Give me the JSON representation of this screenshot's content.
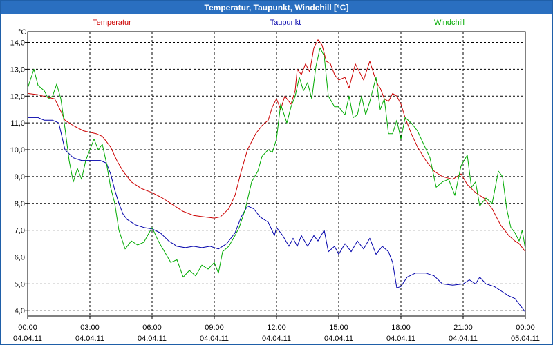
{
  "chart_data": {
    "type": "line",
    "title": "Temperatur, Taupunkt, Windchill [°C]",
    "ylabel": "°C",
    "ylim": [
      3.8,
      14.4
    ],
    "yticks": [
      "14,0",
      "13,0",
      "12,0",
      "11,0",
      "10,0",
      "9,0",
      "8,0",
      "7,0",
      "6,0",
      "5,0",
      "4,0"
    ],
    "ytick_values": [
      14,
      13,
      12,
      11,
      10,
      9,
      8,
      7,
      6,
      5,
      4
    ],
    "xlim": [
      0,
      24
    ],
    "xticks": [
      {
        "time": "00:00",
        "date": "04.04.11"
      },
      {
        "time": "03:00",
        "date": "04.04.11"
      },
      {
        "time": "06:00",
        "date": "04.04.11"
      },
      {
        "time": "09:00",
        "date": "04.04.11"
      },
      {
        "time": "12:00",
        "date": "04.04.11"
      },
      {
        "time": "15:00",
        "date": "04.04.11"
      },
      {
        "time": "18:00",
        "date": "04.04.11"
      },
      {
        "time": "21:00",
        "date": "04.04.11"
      },
      {
        "time": "00:00",
        "date": "05.04.11"
      }
    ],
    "xtick_values": [
      0,
      3,
      6,
      9,
      12,
      15,
      18,
      21,
      24
    ],
    "grid": true,
    "series": [
      {
        "name": "Temperatur",
        "color": "#cc0000",
        "points": [
          [
            0,
            12.1
          ],
          [
            0.5,
            12.05
          ],
          [
            1,
            11.95
          ],
          [
            1.3,
            11.9
          ],
          [
            1.5,
            11.6
          ],
          [
            1.8,
            11.1
          ],
          [
            2.2,
            10.9
          ],
          [
            2.7,
            10.7
          ],
          [
            3.3,
            10.6
          ],
          [
            3.6,
            10.5
          ],
          [
            4.0,
            10.1
          ],
          [
            4.3,
            9.6
          ],
          [
            4.6,
            9.2
          ],
          [
            5.0,
            8.8
          ],
          [
            5.5,
            8.55
          ],
          [
            6.0,
            8.4
          ],
          [
            6.5,
            8.2
          ],
          [
            7.0,
            7.95
          ],
          [
            7.5,
            7.7
          ],
          [
            8.0,
            7.55
          ],
          [
            8.5,
            7.5
          ],
          [
            9.0,
            7.45
          ],
          [
            9.3,
            7.5
          ],
          [
            9.7,
            7.8
          ],
          [
            10.0,
            8.3
          ],
          [
            10.3,
            9.2
          ],
          [
            10.6,
            10.0
          ],
          [
            11.0,
            10.6
          ],
          [
            11.3,
            10.9
          ],
          [
            11.6,
            11.1
          ],
          [
            11.8,
            11.6
          ],
          [
            12.0,
            11.9
          ],
          [
            12.2,
            11.5
          ],
          [
            12.4,
            12.0
          ],
          [
            12.7,
            11.7
          ],
          [
            12.9,
            12.2
          ],
          [
            13.0,
            13.0
          ],
          [
            13.2,
            12.8
          ],
          [
            13.4,
            13.2
          ],
          [
            13.6,
            12.9
          ],
          [
            13.8,
            13.8
          ],
          [
            14.0,
            14.1
          ],
          [
            14.2,
            13.9
          ],
          [
            14.4,
            13.3
          ],
          [
            14.6,
            13.2
          ],
          [
            14.8,
            12.8
          ],
          [
            15.0,
            12.6
          ],
          [
            15.3,
            12.7
          ],
          [
            15.5,
            12.3
          ],
          [
            15.8,
            13.2
          ],
          [
            16.0,
            12.9
          ],
          [
            16.2,
            12.6
          ],
          [
            16.5,
            13.3
          ],
          [
            16.7,
            12.8
          ],
          [
            16.9,
            12.4
          ],
          [
            17.0,
            12.3
          ],
          [
            17.2,
            11.9
          ],
          [
            17.4,
            11.8
          ],
          [
            17.6,
            12.1
          ],
          [
            17.8,
            12.0
          ],
          [
            18.0,
            11.7
          ],
          [
            18.2,
            11.2
          ],
          [
            18.5,
            10.6
          ],
          [
            18.8,
            10.1
          ],
          [
            19.2,
            9.6
          ],
          [
            19.6,
            9.2
          ],
          [
            20.0,
            9.0
          ],
          [
            20.5,
            8.9
          ],
          [
            20.9,
            9.1
          ],
          [
            21.2,
            8.7
          ],
          [
            21.6,
            8.4
          ],
          [
            22.0,
            8.2
          ],
          [
            22.4,
            7.8
          ],
          [
            22.8,
            7.2
          ],
          [
            23.2,
            6.8
          ],
          [
            23.5,
            6.6
          ],
          [
            23.7,
            6.5
          ],
          [
            24.0,
            6.2
          ]
        ]
      },
      {
        "name": "Taupunkt",
        "color": "#0000aa",
        "points": [
          [
            0,
            11.2
          ],
          [
            0.5,
            11.2
          ],
          [
            0.8,
            11.1
          ],
          [
            1.2,
            11.1
          ],
          [
            1.5,
            11.0
          ],
          [
            1.8,
            10.0
          ],
          [
            2.2,
            9.7
          ],
          [
            2.6,
            9.6
          ],
          [
            3.0,
            9.6
          ],
          [
            3.5,
            9.6
          ],
          [
            3.8,
            9.5
          ],
          [
            4.0,
            9.1
          ],
          [
            4.2,
            8.5
          ],
          [
            4.4,
            8.0
          ],
          [
            4.6,
            7.6
          ],
          [
            4.8,
            7.4
          ],
          [
            5.2,
            7.2
          ],
          [
            5.6,
            7.1
          ],
          [
            6.0,
            7.05
          ],
          [
            6.4,
            6.9
          ],
          [
            6.8,
            6.6
          ],
          [
            7.2,
            6.4
          ],
          [
            7.6,
            6.35
          ],
          [
            8.0,
            6.4
          ],
          [
            8.4,
            6.35
          ],
          [
            8.8,
            6.4
          ],
          [
            9.2,
            6.3
          ],
          [
            9.6,
            6.5
          ],
          [
            10.0,
            6.9
          ],
          [
            10.3,
            7.5
          ],
          [
            10.6,
            7.9
          ],
          [
            10.9,
            7.8
          ],
          [
            11.2,
            7.5
          ],
          [
            11.6,
            7.3
          ],
          [
            11.9,
            6.8
          ],
          [
            12.0,
            7.1
          ],
          [
            12.3,
            6.8
          ],
          [
            12.6,
            6.4
          ],
          [
            12.8,
            6.7
          ],
          [
            13.0,
            6.4
          ],
          [
            13.2,
            6.8
          ],
          [
            13.5,
            6.4
          ],
          [
            13.8,
            6.8
          ],
          [
            14.0,
            6.6
          ],
          [
            14.3,
            7.0
          ],
          [
            14.5,
            6.2
          ],
          [
            14.8,
            6.4
          ],
          [
            15.0,
            6.1
          ],
          [
            15.3,
            6.5
          ],
          [
            15.6,
            6.2
          ],
          [
            15.9,
            6.6
          ],
          [
            16.2,
            6.3
          ],
          [
            16.5,
            6.7
          ],
          [
            16.8,
            6.1
          ],
          [
            17.1,
            6.4
          ],
          [
            17.4,
            6.2
          ],
          [
            17.6,
            5.8
          ],
          [
            17.8,
            4.85
          ],
          [
            18.0,
            4.9
          ],
          [
            18.3,
            5.25
          ],
          [
            18.7,
            5.4
          ],
          [
            19.2,
            5.4
          ],
          [
            19.6,
            5.3
          ],
          [
            20.0,
            5.0
          ],
          [
            20.5,
            4.95
          ],
          [
            21.0,
            5.0
          ],
          [
            21.3,
            5.15
          ],
          [
            21.6,
            5.0
          ],
          [
            21.8,
            5.25
          ],
          [
            22.1,
            5.0
          ],
          [
            22.5,
            4.9
          ],
          [
            22.9,
            4.7
          ],
          [
            23.2,
            4.55
          ],
          [
            23.5,
            4.45
          ],
          [
            23.8,
            4.15
          ],
          [
            24.0,
            3.95
          ]
        ]
      },
      {
        "name": "Windchill",
        "color": "#00aa00",
        "points": [
          [
            0,
            12.3
          ],
          [
            0.3,
            13.0
          ],
          [
            0.5,
            12.4
          ],
          [
            0.8,
            12.2
          ],
          [
            1.0,
            11.9
          ],
          [
            1.2,
            12.0
          ],
          [
            1.4,
            12.45
          ],
          [
            1.6,
            11.9
          ],
          [
            1.8,
            10.8
          ],
          [
            2.0,
            9.6
          ],
          [
            2.2,
            8.8
          ],
          [
            2.4,
            9.3
          ],
          [
            2.6,
            8.9
          ],
          [
            2.8,
            9.6
          ],
          [
            3.0,
            10.0
          ],
          [
            3.2,
            10.4
          ],
          [
            3.4,
            10.0
          ],
          [
            3.6,
            10.2
          ],
          [
            3.8,
            9.5
          ],
          [
            4.0,
            8.6
          ],
          [
            4.2,
            8.0
          ],
          [
            4.4,
            7.0
          ],
          [
            4.7,
            6.3
          ],
          [
            5.0,
            6.6
          ],
          [
            5.3,
            6.45
          ],
          [
            5.6,
            6.55
          ],
          [
            6.0,
            7.1
          ],
          [
            6.3,
            6.6
          ],
          [
            6.6,
            6.2
          ],
          [
            6.9,
            5.8
          ],
          [
            7.2,
            5.9
          ],
          [
            7.5,
            5.25
          ],
          [
            7.8,
            5.5
          ],
          [
            8.1,
            5.3
          ],
          [
            8.4,
            5.7
          ],
          [
            8.7,
            5.55
          ],
          [
            9.0,
            5.8
          ],
          [
            9.2,
            5.4
          ],
          [
            9.4,
            6.2
          ],
          [
            9.7,
            6.4
          ],
          [
            10.0,
            6.8
          ],
          [
            10.2,
            7.1
          ],
          [
            10.5,
            7.8
          ],
          [
            10.8,
            8.8
          ],
          [
            11.1,
            9.2
          ],
          [
            11.3,
            9.75
          ],
          [
            11.6,
            10.0
          ],
          [
            11.8,
            9.9
          ],
          [
            12.0,
            10.4
          ],
          [
            12.2,
            11.7
          ],
          [
            12.5,
            11.0
          ],
          [
            12.7,
            11.6
          ],
          [
            12.9,
            12.0
          ],
          [
            13.1,
            12.7
          ],
          [
            13.3,
            12.2
          ],
          [
            13.5,
            12.5
          ],
          [
            13.7,
            11.9
          ],
          [
            13.9,
            13.1
          ],
          [
            14.1,
            13.8
          ],
          [
            14.3,
            13.5
          ],
          [
            14.5,
            12.0
          ],
          [
            14.8,
            11.6
          ],
          [
            15.0,
            11.6
          ],
          [
            15.3,
            11.3
          ],
          [
            15.5,
            12.0
          ],
          [
            15.7,
            11.2
          ],
          [
            15.9,
            11.3
          ],
          [
            16.1,
            12.0
          ],
          [
            16.3,
            11.3
          ],
          [
            16.5,
            11.8
          ],
          [
            16.8,
            12.7
          ],
          [
            17.0,
            11.5
          ],
          [
            17.2,
            11.9
          ],
          [
            17.4,
            10.6
          ],
          [
            17.6,
            10.6
          ],
          [
            17.8,
            11.1
          ],
          [
            18.0,
            10.4
          ],
          [
            18.2,
            11.2
          ],
          [
            18.5,
            11.0
          ],
          [
            18.8,
            10.7
          ],
          [
            19.1,
            10.2
          ],
          [
            19.4,
            9.7
          ],
          [
            19.7,
            8.6
          ],
          [
            20.0,
            8.8
          ],
          [
            20.3,
            8.9
          ],
          [
            20.6,
            8.3
          ],
          [
            20.9,
            9.4
          ],
          [
            21.2,
            9.8
          ],
          [
            21.4,
            8.6
          ],
          [
            21.6,
            8.8
          ],
          [
            21.8,
            7.9
          ],
          [
            22.1,
            8.2
          ],
          [
            22.4,
            8.0
          ],
          [
            22.7,
            9.2
          ],
          [
            22.9,
            9.0
          ],
          [
            23.1,
            7.8
          ],
          [
            23.3,
            7.1
          ],
          [
            23.5,
            6.9
          ],
          [
            23.7,
            6.6
          ],
          [
            23.85,
            7.0
          ],
          [
            24.0,
            6.3
          ]
        ]
      }
    ]
  }
}
